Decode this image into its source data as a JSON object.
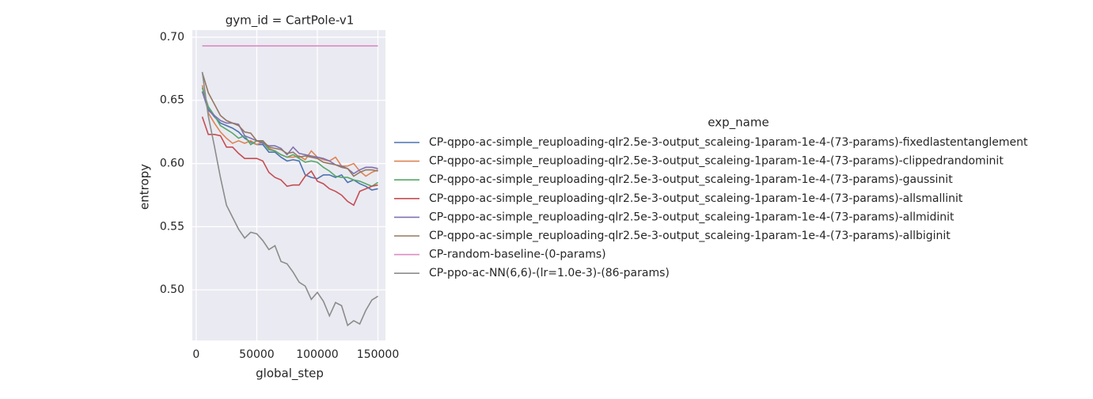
{
  "chart_data": {
    "type": "line",
    "title": "gym_id = CartPole-v1",
    "x_label": "global_step",
    "y_label": "entropy",
    "legend_title": "exp_name",
    "legend_position": "right",
    "grid": true,
    "x": [
      5000,
      10000,
      15000,
      20000,
      25000,
      30000,
      35000,
      40000,
      45000,
      50000,
      55000,
      60000,
      65000,
      70000,
      75000,
      80000,
      85000,
      90000,
      95000,
      100000,
      105000,
      110000,
      115000,
      120000,
      125000,
      130000,
      135000,
      140000,
      145000,
      150000
    ],
    "xlim": [
      -3200,
      156200
    ],
    "ylim": [
      0.46,
      0.7056
    ],
    "xticks": [
      0,
      50000,
      100000,
      150000
    ],
    "yticks": [
      {
        "value": 0.5,
        "label": "0.50"
      },
      0.55,
      {
        "value": 0.6,
        "label": "0.60"
      },
      0.65,
      {
        "value": 0.7,
        "label": "0.70"
      }
    ],
    "series": [
      {
        "name": "CP-qppo-ac-simple_reuploading-qlr2.5e-3-output_scaleing-1param-1e-4-(73-params)-fixedlastentanglement",
        "color": "#4c72b0",
        "values": [
          0.657,
          0.643,
          0.637,
          0.632,
          0.63,
          0.628,
          0.625,
          0.62,
          0.617,
          0.615,
          0.615,
          0.609,
          0.609,
          0.605,
          0.602,
          0.603,
          0.602,
          0.591,
          0.589,
          0.588,
          0.591,
          0.591,
          0.589,
          0.591,
          0.585,
          0.587,
          0.584,
          0.582,
          0.579,
          0.58
        ]
      },
      {
        "name": "CP-qppo-ac-simple_reuploading-qlr2.5e-3-output_scaleing-1param-1e-4-(73-params)-clippedrandominit",
        "color": "#dd8452",
        "values": [
          0.662,
          0.64,
          0.632,
          0.625,
          0.62,
          0.616,
          0.618,
          0.616,
          0.618,
          0.615,
          0.617,
          0.612,
          0.61,
          0.607,
          0.605,
          0.605,
          0.606,
          0.603,
          0.61,
          0.605,
          0.603,
          0.602,
          0.605,
          0.598,
          0.598,
          0.6,
          0.594,
          0.59,
          0.593,
          0.595
        ]
      },
      {
        "name": "CP-qppo-ac-simple_reuploading-qlr2.5e-3-output_scaleing-1param-1e-4-(73-params)-gaussinit",
        "color": "#55a868",
        "values": [
          0.66,
          0.645,
          0.638,
          0.63,
          0.627,
          0.624,
          0.62,
          0.622,
          0.615,
          0.618,
          0.617,
          0.611,
          0.61,
          0.607,
          0.605,
          0.607,
          0.604,
          0.601,
          0.602,
          0.601,
          0.597,
          0.594,
          0.59,
          0.589,
          0.589,
          0.587,
          0.586,
          0.584,
          0.582,
          0.585
        ]
      },
      {
        "name": "CP-qppo-ac-simple_reuploading-qlr2.5e-3-output_scaleing-1param-1e-4-(73-params)-allsmallinit",
        "color": "#c44e52",
        "values": [
          0.637,
          0.623,
          0.623,
          0.622,
          0.613,
          0.613,
          0.608,
          0.604,
          0.604,
          0.604,
          0.602,
          0.593,
          0.589,
          0.587,
          0.582,
          0.583,
          0.583,
          0.59,
          0.594,
          0.586,
          0.584,
          0.58,
          0.578,
          0.575,
          0.57,
          0.567,
          0.578,
          0.58,
          0.582,
          0.583
        ]
      },
      {
        "name": "CP-qppo-ac-simple_reuploading-qlr2.5e-3-output_scaleing-1param-1e-4-(73-params)-allmidinit",
        "color": "#8172b3",
        "values": [
          0.657,
          0.642,
          0.638,
          0.634,
          0.632,
          0.632,
          0.631,
          0.622,
          0.62,
          0.618,
          0.616,
          0.614,
          0.614,
          0.612,
          0.607,
          0.613,
          0.608,
          0.607,
          0.606,
          0.605,
          0.604,
          0.602,
          0.599,
          0.598,
          0.596,
          0.592,
          0.595,
          0.597,
          0.597,
          0.596
        ]
      },
      {
        "name": "CP-qppo-ac-simple_reuploading-qlr2.5e-3-output_scaleing-1param-1e-4-(73-params)-allbiginit",
        "color": "#937860",
        "values": [
          0.672,
          0.656,
          0.647,
          0.638,
          0.634,
          0.632,
          0.63,
          0.625,
          0.624,
          0.618,
          0.618,
          0.613,
          0.612,
          0.611,
          0.608,
          0.609,
          0.605,
          0.606,
          0.605,
          0.604,
          0.601,
          0.6,
          0.599,
          0.597,
          0.596,
          0.59,
          0.593,
          0.595,
          0.595,
          0.594
        ]
      },
      {
        "name": "CP-random-baseline-(0-params)",
        "color": "#da8bc3",
        "values": [
          0.6931,
          0.6931,
          0.6931,
          0.6931,
          0.6931,
          0.6931,
          0.6931,
          0.6931,
          0.6931,
          0.6931,
          0.6931,
          0.6931,
          0.6931,
          0.6931,
          0.6931,
          0.6931,
          0.6931,
          0.6931,
          0.6931,
          0.6931,
          0.6931,
          0.6931,
          0.6931,
          0.6931,
          0.6931,
          0.6931,
          0.6931,
          0.6931,
          0.6931,
          0.6931
        ]
      },
      {
        "name": "CP-ppo-ac-NN(6,6)-(lr=1.0e-3)-(86-params)",
        "color": "#8c8c8c",
        "values": [
          0.6725,
          0.6375,
          0.6138,
          0.589,
          0.567,
          0.5575,
          0.548,
          0.541,
          0.5456,
          0.5444,
          0.539,
          0.5319,
          0.535,
          0.5225,
          0.5206,
          0.514,
          0.506,
          0.503,
          0.4925,
          0.498,
          0.491,
          0.4794,
          0.49,
          0.4875,
          0.4719,
          0.4756,
          0.473,
          0.4838,
          0.492,
          0.495
        ]
      }
    ]
  }
}
